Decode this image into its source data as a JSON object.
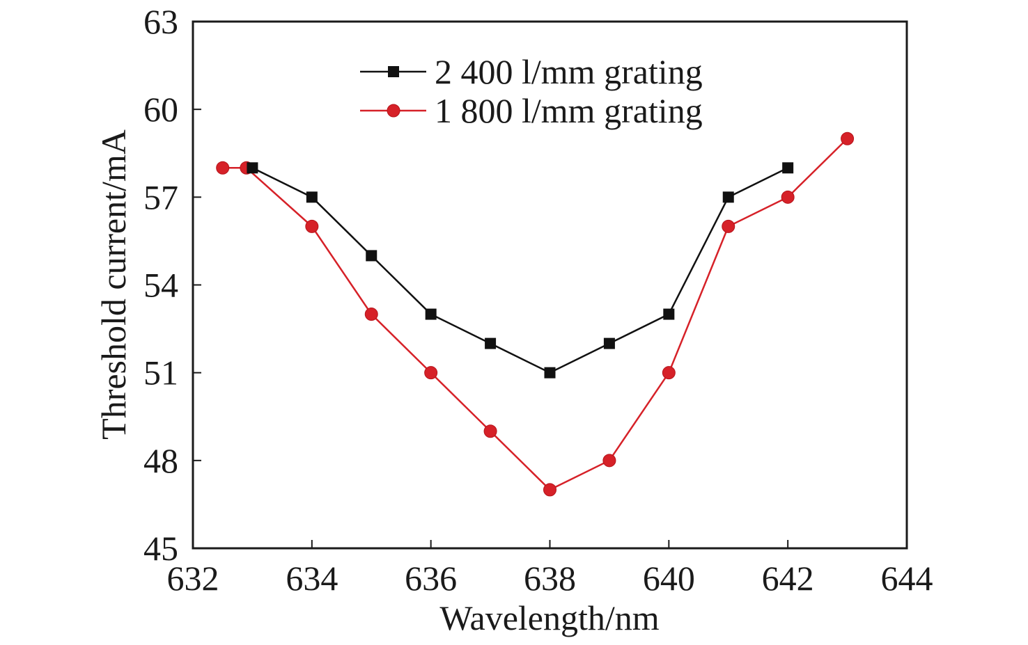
{
  "chart_data": {
    "type": "line",
    "title": "",
    "xlabel": "Wavelength/nm",
    "ylabel": "Threshold current/mA",
    "xlim": [
      632,
      644
    ],
    "ylim": [
      45,
      63
    ],
    "xticks": [
      632,
      634,
      636,
      638,
      640,
      642,
      644
    ],
    "yticks": [
      45,
      48,
      51,
      54,
      57,
      60,
      63
    ],
    "grid": false,
    "legend_position": "top-center",
    "series": [
      {
        "name": "2 400 l/mm grating",
        "color": "#111111",
        "marker": "square",
        "x": [
          633,
          634,
          635,
          636,
          637,
          638,
          639,
          640,
          641,
          642
        ],
        "y": [
          58,
          57,
          55,
          53,
          52,
          51,
          52,
          53,
          57,
          58
        ]
      },
      {
        "name": "1 800 l/mm grating",
        "color": "#d62128",
        "marker": "circle",
        "x": [
          632.5,
          632.9,
          634,
          635,
          636,
          637,
          638,
          639,
          640,
          641,
          642,
          643
        ],
        "y": [
          58,
          58,
          56,
          53,
          51,
          49,
          47,
          48,
          51,
          56,
          57,
          59
        ]
      }
    ]
  }
}
